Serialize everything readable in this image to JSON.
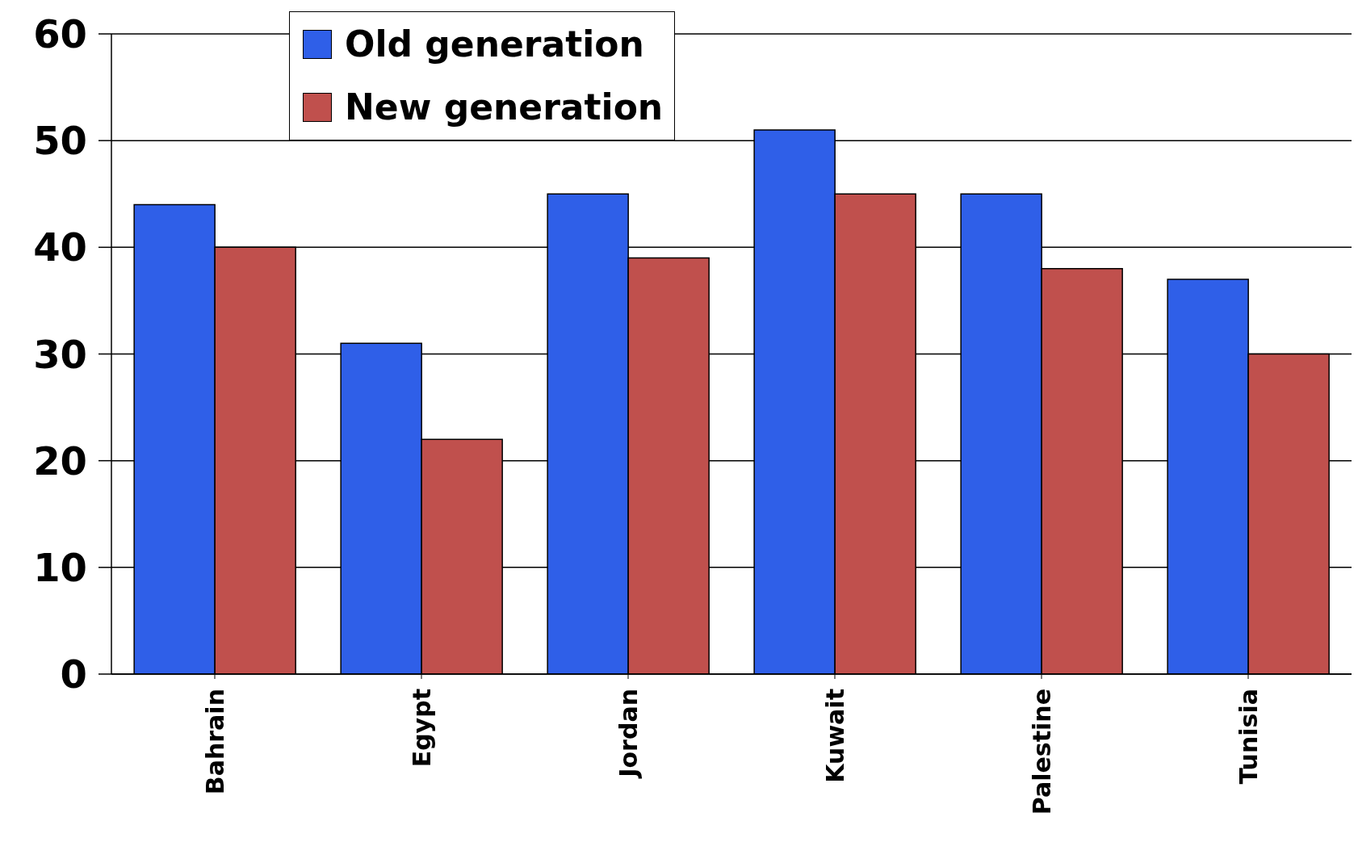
{
  "chart_data": {
    "type": "bar",
    "categories": [
      "Bahrain",
      "Egypt",
      "Jordan",
      "Kuwait",
      "Palestine",
      "Tunisia"
    ],
    "series": [
      {
        "name": "Old generation",
        "color": "#2f5fe8",
        "values": [
          44,
          31,
          45,
          51,
          45,
          37
        ]
      },
      {
        "name": "New generation",
        "color": "#c0504d",
        "values": [
          40,
          22,
          39,
          45,
          38,
          30
        ]
      }
    ],
    "ylim": [
      0,
      60
    ],
    "yticks": [
      0,
      10,
      20,
      30,
      40,
      50,
      60
    ],
    "grid": "y",
    "legend": "top"
  }
}
